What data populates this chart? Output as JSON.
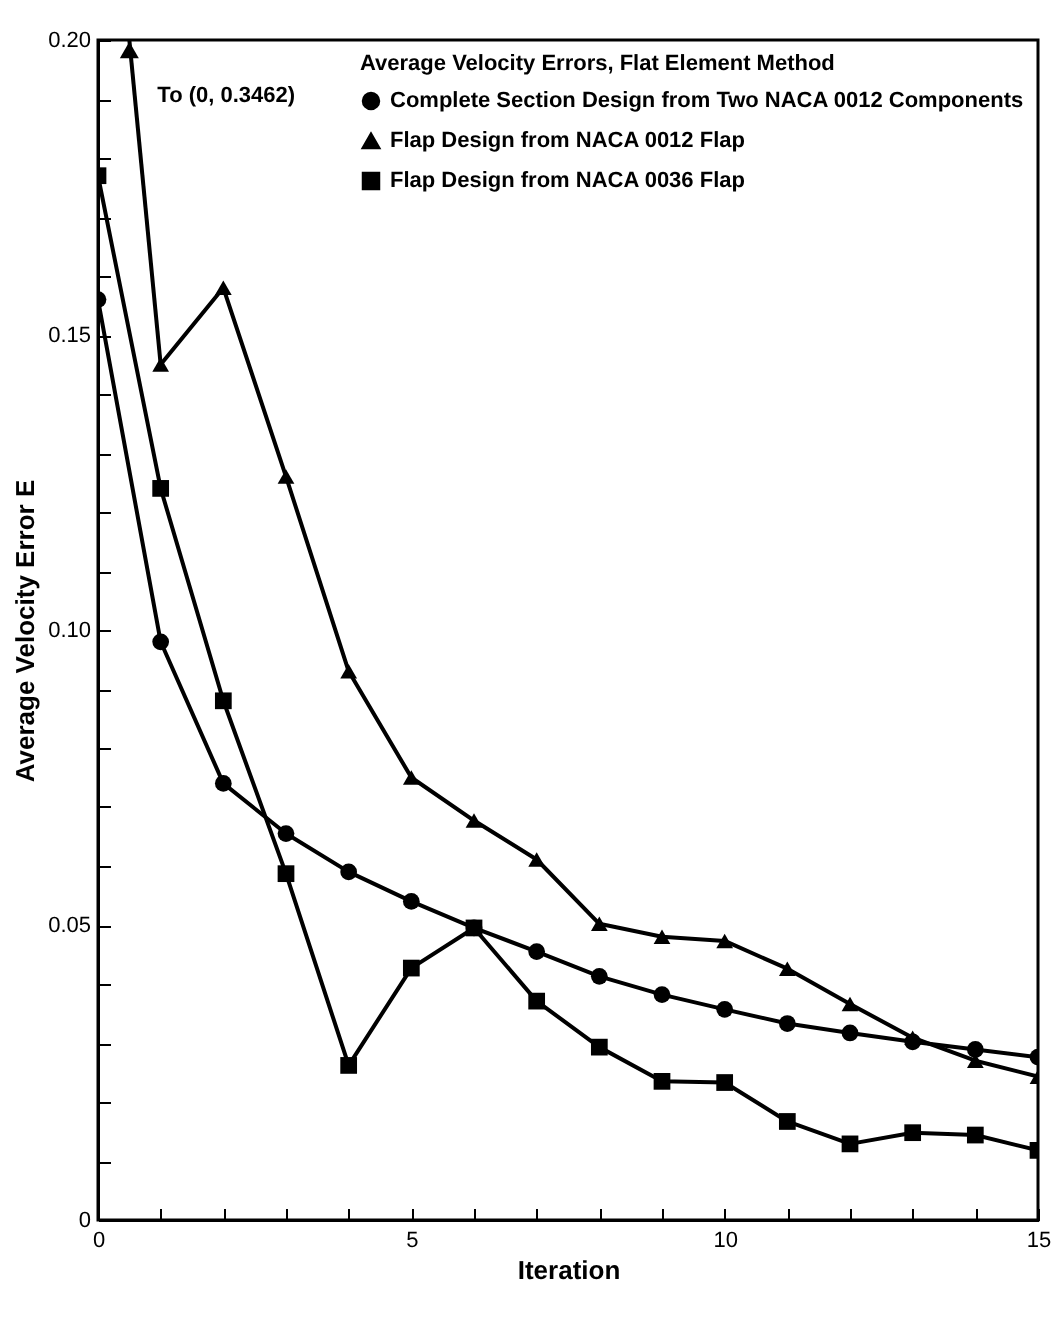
{
  "chart_data": {
    "type": "line",
    "xlabel": "Iteration",
    "ylabel": "Average Velocity Error   E",
    "legend_title": "Average Velocity Errors, Flat Element Method",
    "legend": "top right",
    "grid": false,
    "annotations": [
      "To (0, 0.3462)"
    ],
    "x": [
      0,
      1,
      2,
      3,
      4,
      5,
      6,
      7,
      8,
      9,
      10,
      11,
      12,
      13,
      14,
      15
    ],
    "xlim": [
      0,
      15
    ],
    "xticks": [
      0,
      {
        "value": 1,
        "label": null
      },
      {
        "value": 2,
        "label": null
      },
      {
        "value": 3,
        "label": null
      },
      {
        "value": 4,
        "label": null
      },
      5,
      {
        "value": 6,
        "label": null
      },
      {
        "value": 7,
        "label": null
      },
      {
        "value": 8,
        "label": null
      },
      {
        "value": 9,
        "label": null
      },
      10,
      {
        "value": 11,
        "label": null
      },
      {
        "value": 12,
        "label": null
      },
      {
        "value": 13,
        "label": null
      },
      {
        "value": 14,
        "label": null
      },
      15
    ],
    "ylim": [
      0,
      0.2
    ],
    "yticks": [
      0,
      {
        "value": 0.01,
        "label": null
      },
      {
        "value": 0.02,
        "label": null
      },
      {
        "value": 0.03,
        "label": null
      },
      {
        "value": 0.04,
        "label": null
      },
      0.05,
      {
        "value": 0.06,
        "label": null
      },
      {
        "value": 0.07,
        "label": null
      },
      {
        "value": 0.08,
        "label": null
      },
      {
        "value": 0.09,
        "label": null
      },
      {
        "value": 0.1,
        "label": "0.10"
      },
      {
        "value": 0.11,
        "label": null
      },
      {
        "value": 0.12,
        "label": null
      },
      {
        "value": 0.13,
        "label": null
      },
      {
        "value": 0.14,
        "label": null
      },
      0.15,
      {
        "value": 0.16,
        "label": null
      },
      {
        "value": 0.17,
        "label": null
      },
      {
        "value": 0.18,
        "label": null
      },
      {
        "value": 0.19,
        "label": null
      },
      {
        "value": 0.2,
        "label": "0.20"
      }
    ],
    "series": [
      {
        "name": "Complete Section Design from Two NACA 0012 Components",
        "color": "#000000",
        "marker": "circle",
        "values": [
          0.156,
          0.098,
          0.074,
          0.0655,
          0.059,
          0.054,
          0.0495,
          0.0455,
          0.0413,
          0.0382,
          0.0357,
          0.0333,
          0.0317,
          0.0302,
          0.0289,
          0.0276
        ]
      },
      {
        "name": "Flap Design from NACA 0012 Flap",
        "color": "#000000",
        "marker": "triangle",
        "values": [
          null,
          0.145,
          0.158,
          0.126,
          0.093,
          0.075,
          0.0677,
          0.0611,
          0.0502,
          0.048,
          0.0473,
          0.0426,
          0.0366,
          0.0309,
          0.027,
          0.0243
        ]
      },
      {
        "name": "Flap Design from NACA 0036 Flap",
        "color": "#000000",
        "marker": "square",
        "values": [
          0.177,
          0.124,
          0.088,
          0.0587,
          0.0262,
          0.0427,
          0.0495,
          0.0371,
          0.0293,
          0.0235,
          0.0233,
          0.0167,
          0.0129,
          0.0148,
          0.0144,
          0.0118
        ]
      }
    ]
  }
}
